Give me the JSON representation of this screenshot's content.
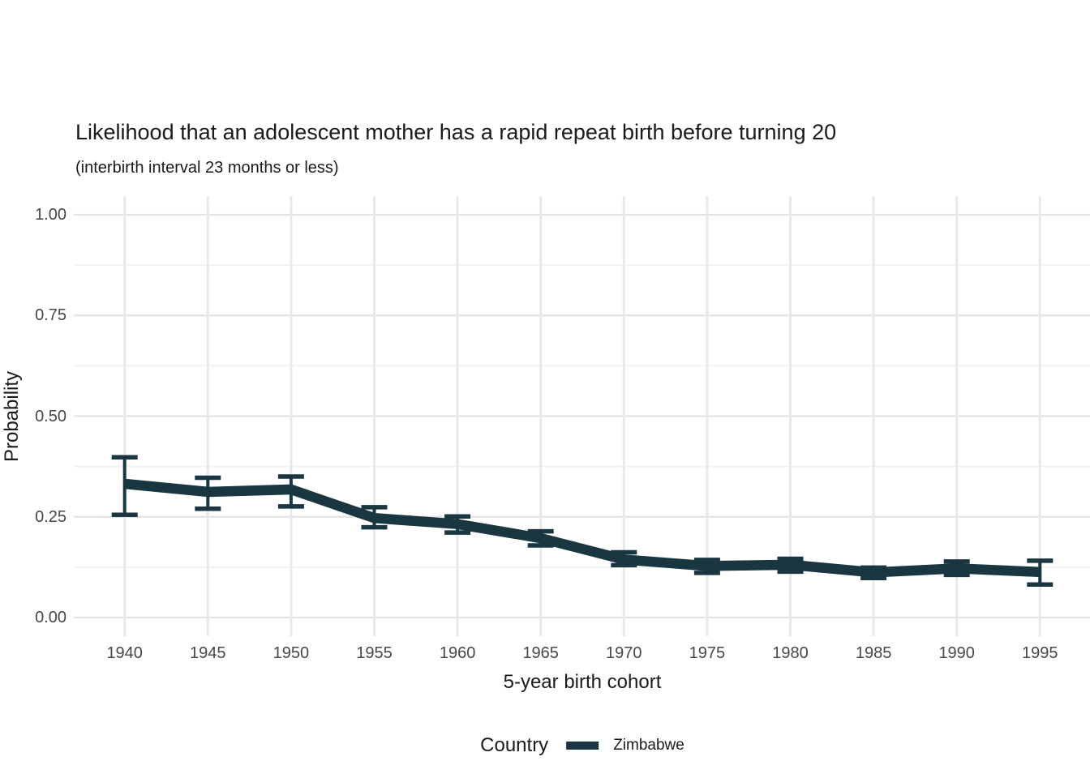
{
  "title": "Likelihood that an adolescent mother has a rapid repeat birth before turning 20",
  "subtitle": "(interbirth interval 23 months or less)",
  "colors": {
    "line": "#1a3640",
    "grid_vertical": "#e9e9e9",
    "grid_major": "#e3e3e3",
    "grid_minor": "#f2f2f2",
    "axis_text": "#474747",
    "title_text": "#1a1a1a",
    "background": "#ffffff"
  },
  "legend": {
    "title": "Country",
    "entries": [
      {
        "label": "Zimbabwe",
        "color": "#1a3640"
      }
    ],
    "position": "bottom"
  },
  "chart_data": {
    "type": "line",
    "title": "Likelihood that an adolescent mother has a rapid repeat birth before turning 20",
    "subtitle": "(interbirth interval 23 months or less)",
    "xlabel": "5-year birth cohort",
    "ylabel": "Probability",
    "x": [
      1940,
      1945,
      1950,
      1955,
      1960,
      1965,
      1970,
      1975,
      1980,
      1985,
      1990,
      1995
    ],
    "xtick_labels": [
      "1940",
      "1945",
      "1950",
      "1955",
      "1960",
      "1965",
      "1970",
      "1975",
      "1980",
      "1985",
      "1990",
      "1995"
    ],
    "series": [
      {
        "name": "Zimbabwe",
        "values": [
          0.332,
          0.312,
          0.318,
          0.247,
          0.232,
          0.197,
          0.144,
          0.128,
          0.131,
          0.112,
          0.122,
          0.113
        ],
        "ci_low": [
          0.255,
          0.27,
          0.276,
          0.224,
          0.211,
          0.179,
          0.13,
          0.111,
          0.114,
          0.098,
          0.106,
          0.082
        ],
        "ci_high": [
          0.398,
          0.347,
          0.35,
          0.274,
          0.251,
          0.214,
          0.162,
          0.143,
          0.146,
          0.124,
          0.139,
          0.141
        ]
      }
    ],
    "error_bars": true,
    "ylim": [
      0,
      1
    ],
    "yticks": [
      0.0,
      0.25,
      0.5,
      0.75,
      1.0
    ],
    "ytick_labels": [
      "0.00",
      "0.25",
      "0.50",
      "0.75",
      "1.00"
    ],
    "minor_yticks": [
      0.125,
      0.375,
      0.625,
      0.875
    ],
    "grid": "horizontal major+minor, vertical major only",
    "legend_position": "bottom"
  }
}
